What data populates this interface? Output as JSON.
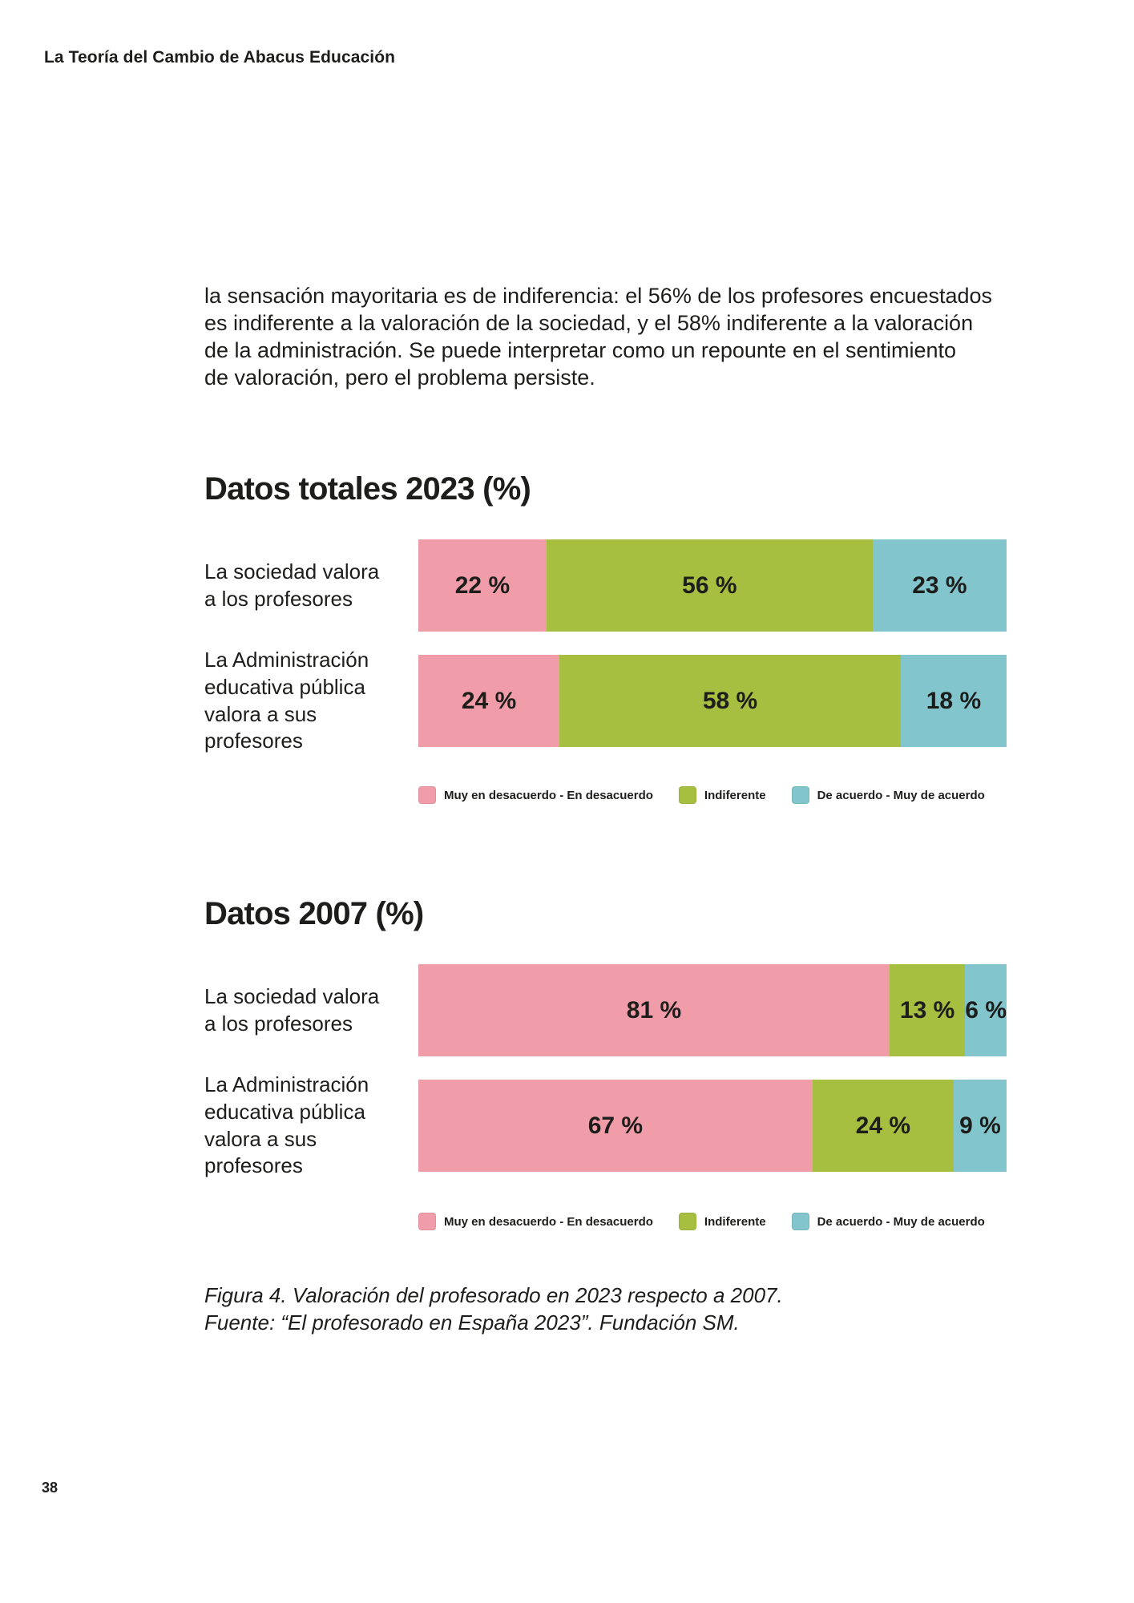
{
  "page": {
    "header": "La Teoría del Cambio de Abacus Educación",
    "paragraph": "la sensación mayoritaria es de indiferencia: el 56% de los profesores encuestados\nes indiferente a la valoración de la sociedad, y el 58% indiferente a la valoración\nde la administración. Se puede interpretar como un repounte en el sentimiento\nde valoración, pero el problema persiste.",
    "page_number": "38"
  },
  "colors": {
    "text": "#1D1D1B",
    "background": "#FFFFFF",
    "disagree_pink": "#F09DA9",
    "indifferent_green": "#A7BF40",
    "agree_teal": "#82C5CC"
  },
  "legend": {
    "items": [
      {
        "label": "Muy en desacuerdo - En desacuerdo",
        "color": "#F09DA9"
      },
      {
        "label": "Indiferente",
        "color": "#A7BF40"
      },
      {
        "label": "De acuerdo - Muy de acuerdo",
        "color": "#82C5CC"
      }
    ]
  },
  "caption": {
    "lines": [
      "Figura 4. Valoración del profesorado en 2023 respecto a 2007.",
      "Fuente: “El profesorado en España 2023”. Fundación SM."
    ]
  },
  "chart_data": [
    {
      "type": "bar",
      "orientation": "horizontal",
      "stacked": true,
      "title": "Datos totales 2023 (%)",
      "unit": "%",
      "value_label_suffix": " %",
      "legend_position": "bottom",
      "categories": [
        "La sociedad valora a los profesores",
        "La Administración educativa pública valora a sus profesores"
      ],
      "categories_display": [
        "La sociedad valora\na los profesores",
        "La Administración\neducativa pública\nvalora a sus\nprofesores"
      ],
      "series": [
        {
          "name": "Muy en desacuerdo - En desacuerdo",
          "color": "#F09DA9",
          "values": [
            22,
            24
          ]
        },
        {
          "name": "Indiferente",
          "color": "#A7BF40",
          "values": [
            56,
            58
          ]
        },
        {
          "name": "De acuerdo - Muy de acuerdo",
          "color": "#82C5CC",
          "values": [
            23,
            18
          ]
        }
      ]
    },
    {
      "type": "bar",
      "orientation": "horizontal",
      "stacked": true,
      "title": "Datos 2007 (%)",
      "unit": "%",
      "value_label_suffix": " %",
      "legend_position": "bottom",
      "categories": [
        "La sociedad valora a los profesores",
        "La Administración educativa pública valora a sus profesores"
      ],
      "categories_display": [
        "La sociedad valora\na los profesores",
        "La Administración\neducativa pública\nvalora a sus\nprofesores"
      ],
      "series": [
        {
          "name": "Muy en desacuerdo - En desacuerdo",
          "color": "#F09DA9",
          "values": [
            81,
            67
          ]
        },
        {
          "name": "Indiferente",
          "color": "#A7BF40",
          "values": [
            13,
            24
          ]
        },
        {
          "name": "De acuerdo - Muy de acuerdo",
          "color": "#82C5CC",
          "values": [
            6,
            9
          ]
        }
      ]
    }
  ]
}
